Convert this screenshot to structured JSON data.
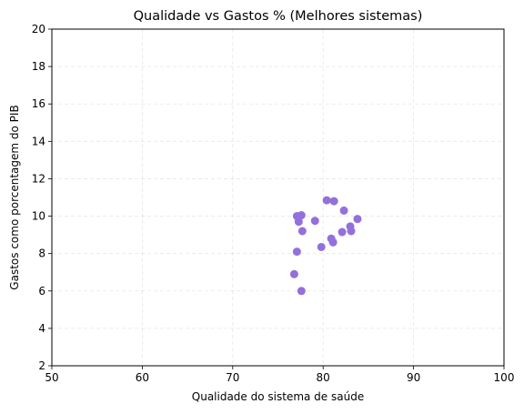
{
  "chart_data": {
    "type": "scatter",
    "title": "Qualidade vs Gastos % (Melhores sistemas)",
    "xlabel": "Qualidade do sistema de saúde",
    "ylabel": "Gastos como porcentagem do PIB",
    "xlim": [
      50,
      100
    ],
    "ylim": [
      2,
      20
    ],
    "xticks": [
      50,
      60,
      70,
      80,
      90,
      100
    ],
    "yticks": [
      2,
      4,
      6,
      8,
      10,
      12,
      14,
      16,
      18,
      20
    ],
    "grid": true,
    "point_color": "#9370DB",
    "points": [
      {
        "x": 76.8,
        "y": 6.9
      },
      {
        "x": 77.1,
        "y": 8.1
      },
      {
        "x": 77.6,
        "y": 6.0
      },
      {
        "x": 77.1,
        "y": 10.0
      },
      {
        "x": 77.3,
        "y": 9.7
      },
      {
        "x": 77.6,
        "y": 10.05
      },
      {
        "x": 77.7,
        "y": 9.2
      },
      {
        "x": 79.1,
        "y": 9.75
      },
      {
        "x": 79.8,
        "y": 8.35
      },
      {
        "x": 80.4,
        "y": 10.85
      },
      {
        "x": 80.9,
        "y": 8.8
      },
      {
        "x": 81.1,
        "y": 8.6
      },
      {
        "x": 81.2,
        "y": 10.8
      },
      {
        "x": 82.1,
        "y": 9.15
      },
      {
        "x": 82.3,
        "y": 10.3
      },
      {
        "x": 83.0,
        "y": 9.45
      },
      {
        "x": 83.1,
        "y": 9.2
      },
      {
        "x": 83.8,
        "y": 9.85
      }
    ]
  }
}
